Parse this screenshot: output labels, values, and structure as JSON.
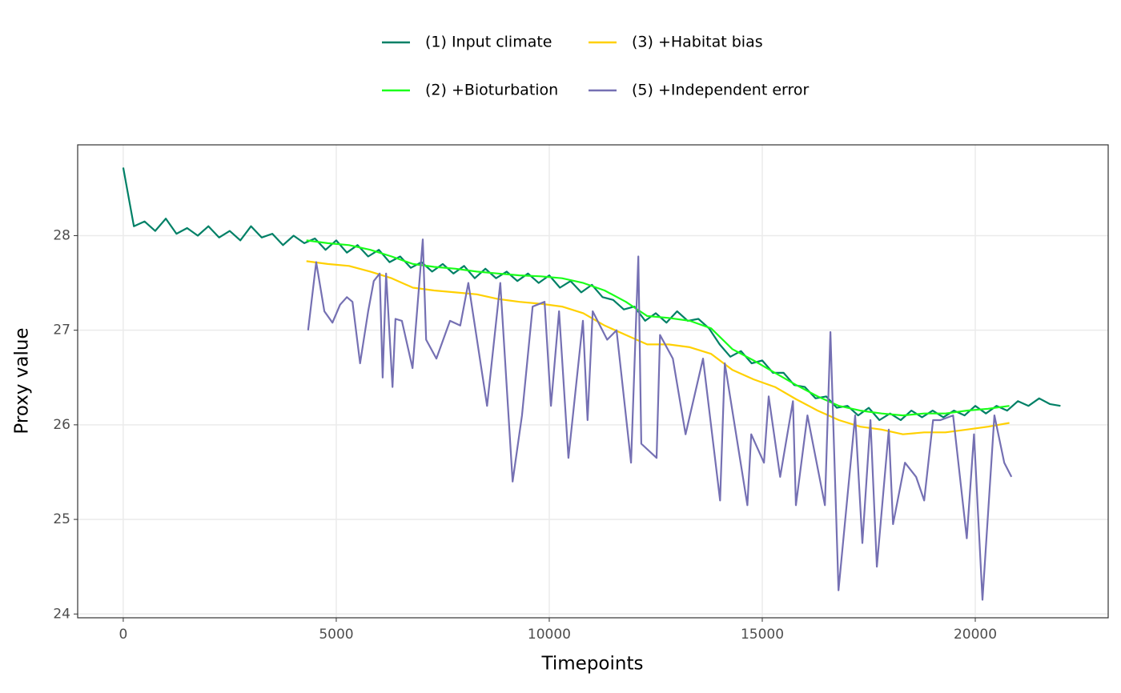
{
  "chart_data": {
    "type": "line",
    "x_label": "Timepoints",
    "y_label": "Proxy value",
    "xlim": [
      -1070,
      23120
    ],
    "ylim": [
      23.96,
      28.96
    ],
    "xticks": [
      0,
      5000,
      10000,
      15000,
      20000
    ],
    "yticks": [
      24,
      25,
      26,
      27,
      28
    ],
    "grid": true,
    "legend_position": "top",
    "series": [
      {
        "name": "(1) Input climate",
        "color": "#008066",
        "x": [
          0,
          250,
          500,
          750,
          1000,
          1250,
          1500,
          1750,
          2000,
          2250,
          2500,
          2750,
          3000,
          3250,
          3500,
          3750,
          4000,
          4250,
          4500,
          4750,
          5000,
          5250,
          5500,
          5750,
          6000,
          6250,
          6500,
          6750,
          7000,
          7250,
          7500,
          7750,
          8000,
          8250,
          8500,
          8750,
          9000,
          9250,
          9500,
          9750,
          10000,
          10250,
          10500,
          10750,
          11000,
          11250,
          11500,
          11750,
          12000,
          12250,
          12500,
          12750,
          13000,
          13250,
          13500,
          13750,
          14000,
          14250,
          14500,
          14750,
          15000,
          15250,
          15500,
          15750,
          16000,
          16250,
          16500,
          16750,
          17000,
          17250,
          17500,
          17750,
          18000,
          18250,
          18500,
          18750,
          19000,
          19250,
          19500,
          19750,
          20000,
          20250,
          20500,
          20750,
          21000,
          21250,
          21500,
          21750,
          22000
        ],
        "values": [
          28.72,
          28.1,
          28.15,
          28.05,
          28.18,
          28.02,
          28.08,
          28.0,
          28.1,
          27.98,
          28.05,
          27.95,
          28.1,
          27.98,
          28.02,
          27.9,
          28.0,
          27.92,
          27.97,
          27.85,
          27.95,
          27.82,
          27.9,
          27.78,
          27.85,
          27.72,
          27.78,
          27.66,
          27.72,
          27.62,
          27.7,
          27.6,
          27.68,
          27.55,
          27.65,
          27.55,
          27.62,
          27.52,
          27.6,
          27.5,
          27.58,
          27.45,
          27.52,
          27.4,
          27.48,
          27.35,
          27.32,
          27.22,
          27.25,
          27.1,
          27.18,
          27.08,
          27.2,
          27.1,
          27.12,
          27.02,
          26.85,
          26.72,
          26.78,
          26.65,
          26.68,
          26.55,
          26.55,
          26.42,
          26.4,
          26.28,
          26.3,
          26.18,
          26.2,
          26.1,
          26.18,
          26.05,
          26.12,
          26.05,
          26.15,
          26.08,
          26.15,
          26.08,
          26.15,
          26.1,
          26.2,
          26.12,
          26.2,
          26.15,
          26.25,
          26.2,
          26.28,
          26.22,
          26.2
        ]
      },
      {
        "name": "(2) +Bioturbation",
        "color": "#1aff1a",
        "x": [
          4300,
          4800,
          5300,
          5800,
          6300,
          6800,
          7300,
          7800,
          8300,
          8800,
          9300,
          9800,
          10300,
          10800,
          11300,
          11800,
          12300,
          12800,
          13300,
          13800,
          14300,
          14800,
          15300,
          15800,
          16300,
          16800,
          17300,
          17800,
          18300,
          18800,
          19300,
          19800,
          20300,
          20800
        ],
        "values": [
          27.95,
          27.92,
          27.9,
          27.85,
          27.78,
          27.7,
          27.67,
          27.65,
          27.62,
          27.6,
          27.58,
          27.57,
          27.55,
          27.5,
          27.42,
          27.3,
          27.15,
          27.13,
          27.1,
          27.02,
          26.8,
          26.68,
          26.55,
          26.42,
          26.3,
          26.2,
          26.15,
          26.12,
          26.1,
          26.12,
          26.12,
          26.15,
          26.17,
          26.2
        ]
      },
      {
        "name": "(3) +Habitat bias",
        "color": "#ffd000",
        "x": [
          4300,
          4800,
          5300,
          5800,
          6300,
          6800,
          7300,
          7800,
          8300,
          8800,
          9300,
          9800,
          10300,
          10800,
          11300,
          11800,
          12300,
          12800,
          13300,
          13800,
          14300,
          14800,
          15300,
          15800,
          16300,
          16800,
          17300,
          17800,
          18300,
          18800,
          19300,
          19800,
          20300,
          20800
        ],
        "values": [
          27.73,
          27.7,
          27.68,
          27.62,
          27.55,
          27.45,
          27.42,
          27.4,
          27.38,
          27.33,
          27.3,
          27.28,
          27.25,
          27.18,
          27.05,
          26.95,
          26.85,
          26.85,
          26.82,
          26.75,
          26.58,
          26.48,
          26.4,
          26.27,
          26.15,
          26.05,
          25.98,
          25.95,
          25.9,
          25.92,
          25.92,
          25.95,
          25.98,
          26.02
        ]
      },
      {
        "name": "(5) +Independent error",
        "color": "#7570b3",
        "x": [
          4340,
          4530,
          4720,
          4910,
          5090,
          5250,
          5380,
          5560,
          5750,
          5880,
          6020,
          6090,
          6170,
          6320,
          6390,
          6540,
          6790,
          7030,
          7110,
          7350,
          7670,
          7910,
          8100,
          8540,
          8850,
          9140,
          9360,
          9610,
          9890,
          10040,
          10230,
          10450,
          10790,
          10900,
          11020,
          11360,
          11580,
          11920,
          12090,
          12160,
          12520,
          12600,
          12900,
          13200,
          13610,
          14010,
          14120,
          14650,
          14740,
          15040,
          15150,
          15420,
          15720,
          15790,
          16060,
          16470,
          16600,
          16790,
          17180,
          17350,
          17540,
          17690,
          17970,
          18070,
          18350,
          18610,
          18800,
          19010,
          19180,
          19480,
          19800,
          19970,
          20170,
          20450,
          20680,
          20850
        ],
        "values": [
          27.0,
          27.72,
          27.2,
          27.08,
          27.27,
          27.35,
          27.3,
          26.65,
          27.2,
          27.52,
          27.6,
          26.5,
          27.6,
          26.4,
          27.12,
          27.1,
          26.6,
          27.96,
          26.9,
          26.7,
          27.1,
          27.05,
          27.5,
          26.2,
          27.5,
          25.4,
          26.1,
          27.25,
          27.3,
          26.2,
          27.2,
          25.65,
          27.1,
          26.05,
          27.2,
          26.9,
          27.0,
          25.6,
          27.78,
          25.8,
          25.65,
          26.95,
          26.7,
          25.9,
          26.7,
          25.2,
          26.65,
          25.15,
          25.9,
          25.6,
          26.3,
          25.45,
          26.25,
          25.15,
          26.1,
          25.15,
          26.98,
          24.25,
          26.1,
          24.75,
          26.05,
          24.5,
          25.95,
          24.95,
          25.6,
          25.45,
          25.2,
          26.05,
          26.05,
          26.1,
          24.8,
          25.9,
          24.15,
          26.1,
          25.6,
          25.45
        ]
      }
    ]
  }
}
